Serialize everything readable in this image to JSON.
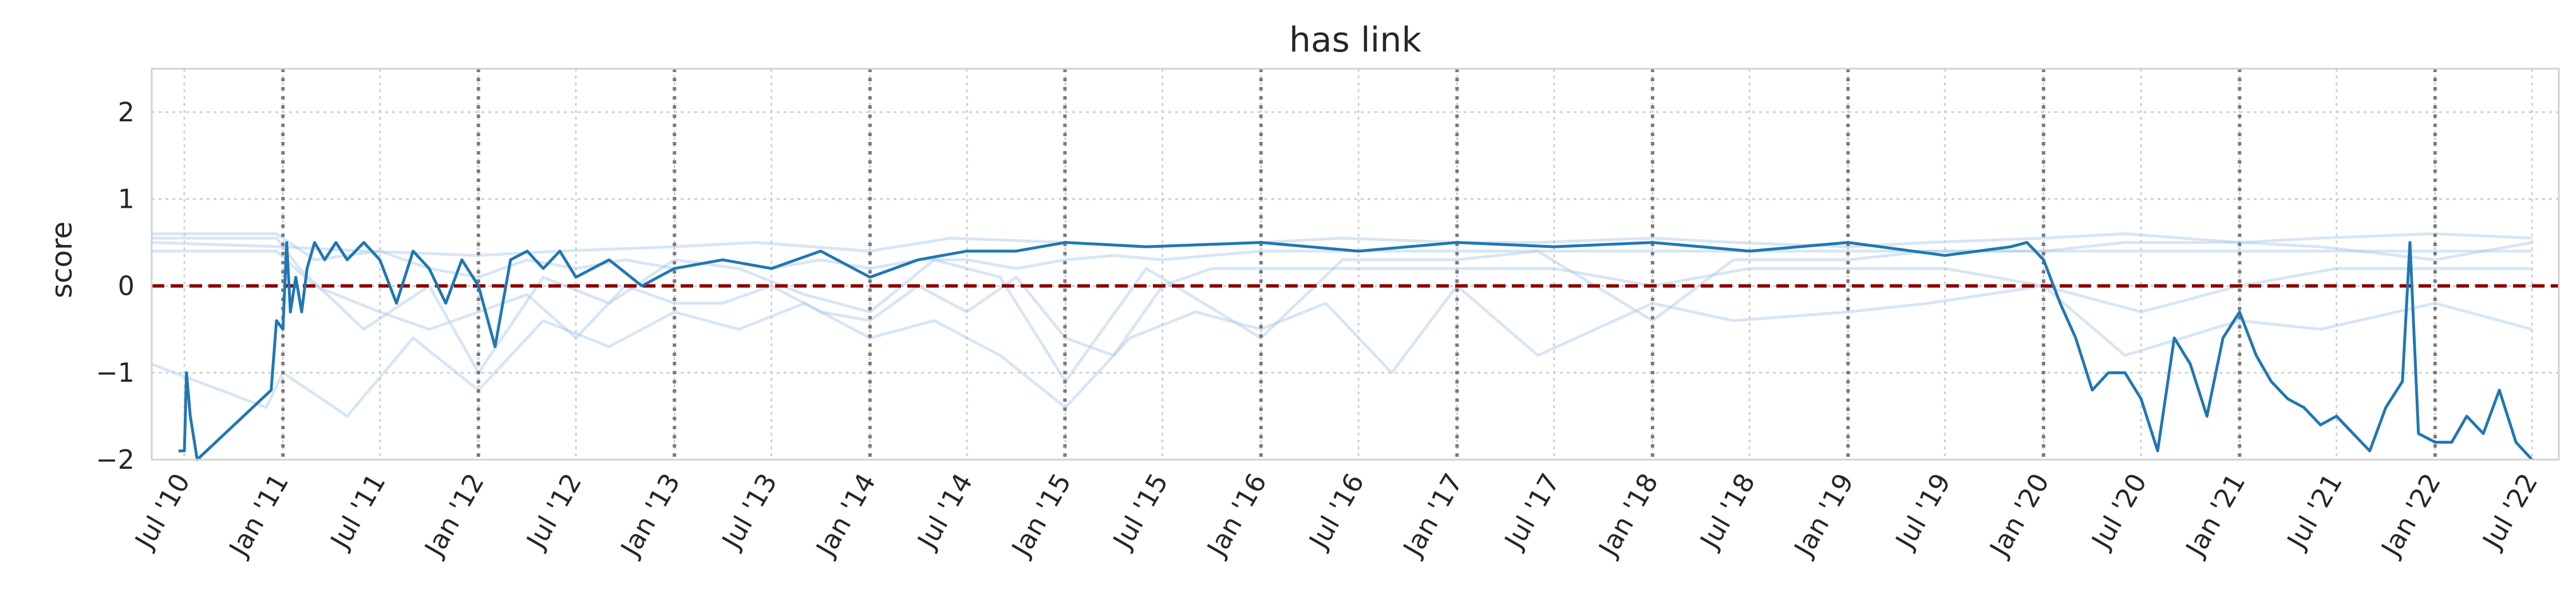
{
  "chart_data": {
    "type": "line",
    "title": "has link",
    "xlabel": "",
    "ylabel": "score",
    "ylim": [
      -2,
      2.5
    ],
    "xlim": [
      "2010-05-01",
      "2022-08-20"
    ],
    "grid": true,
    "ytick_labels": [
      "2",
      "1",
      "0",
      "−1",
      "−2"
    ],
    "yticks": [
      2,
      1,
      0,
      -1,
      -2
    ],
    "xtick_labels": [
      "Jul '10",
      "Jan '11",
      "Jul '11",
      "Jan '12",
      "Jul '12",
      "Jan '13",
      "Jul '13",
      "Jan '14",
      "Jul '14",
      "Jan '15",
      "Jul '15",
      "Jan '16",
      "Jul '16",
      "Jan '17",
      "Jul '17",
      "Jan '18",
      "Jul '18",
      "Jan '19",
      "Jul '19",
      "Jan '20",
      "Jul '20",
      "Jan '21",
      "Jul '21",
      "Jan '22",
      "Jul '22"
    ],
    "xticks": [
      "2010-07-01",
      "2011-01-01",
      "2011-07-01",
      "2012-01-01",
      "2012-07-01",
      "2013-01-01",
      "2013-07-01",
      "2014-01-01",
      "2014-07-01",
      "2015-01-01",
      "2015-07-01",
      "2016-01-01",
      "2016-07-01",
      "2017-01-01",
      "2017-07-01",
      "2018-01-01",
      "2018-07-01",
      "2019-01-01",
      "2019-07-01",
      "2020-01-01",
      "2020-07-01",
      "2021-01-01",
      "2021-07-01",
      "2022-01-01",
      "2022-07-01"
    ],
    "vertical_lines": [
      "2011-01-01",
      "2012-01-01",
      "2013-01-01",
      "2014-01-01",
      "2014-12-31",
      "2016-01-01",
      "2017-01-01",
      "2018-01-01",
      "2019-01-01",
      "2020-01-01",
      "2021-01-01",
      "2022-01-01"
    ],
    "reference_line": {
      "y": 0,
      "color": "#8b0000",
      "style": "dashed"
    },
    "colors": {
      "main": "#1f77b4",
      "background": "#a6c8e6",
      "vline": "#7a7a7a"
    },
    "series": [
      {
        "role": "highlighted",
        "x": [
          "2010-06-20",
          "2010-07-01",
          "2010-07-05",
          "2010-07-12",
          "2010-07-25",
          "2010-12-10",
          "2010-12-20",
          "2011-01-01",
          "2011-01-08",
          "2011-01-15",
          "2011-01-25",
          "2011-02-05",
          "2011-02-15",
          "2011-03-01",
          "2011-03-20",
          "2011-04-10",
          "2011-05-01",
          "2011-06-01",
          "2011-07-01",
          "2011-08-01",
          "2011-09-01",
          "2011-10-01",
          "2011-11-01",
          "2011-12-01",
          "2012-01-01",
          "2012-02-01",
          "2012-03-01",
          "2012-04-01",
          "2012-05-01",
          "2012-06-01",
          "2012-07-01",
          "2012-09-01",
          "2012-11-01",
          "2013-01-01",
          "2013-04-01",
          "2013-07-01",
          "2013-10-01",
          "2014-01-01",
          "2014-04-01",
          "2014-07-01",
          "2014-10-01",
          "2015-01-01",
          "2015-06-01",
          "2016-01-01",
          "2016-07-01",
          "2017-01-01",
          "2017-07-01",
          "2018-01-01",
          "2018-07-01",
          "2019-01-01",
          "2019-07-01",
          "2019-11-01",
          "2019-12-01",
          "2020-01-01",
          "2020-02-01",
          "2020-03-01",
          "2020-04-01",
          "2020-05-01",
          "2020-06-01",
          "2020-07-01",
          "2020-08-01",
          "2020-09-01",
          "2020-10-01",
          "2020-11-01",
          "2020-12-01",
          "2021-01-01",
          "2021-02-01",
          "2021-03-01",
          "2021-04-01",
          "2021-05-01",
          "2021-06-01",
          "2021-07-01",
          "2021-08-01",
          "2021-09-01",
          "2021-10-01",
          "2021-11-01",
          "2021-11-15",
          "2021-12-01",
          "2022-01-01",
          "2022-02-01",
          "2022-03-01",
          "2022-04-01",
          "2022-05-01",
          "2022-06-01",
          "2022-07-01"
        ],
        "y": [
          -1.9,
          -1.9,
          -1.0,
          -1.5,
          -2.0,
          -1.2,
          -0.4,
          -0.5,
          0.5,
          -0.3,
          0.1,
          -0.3,
          0.2,
          0.5,
          0.3,
          0.5,
          0.3,
          0.5,
          0.3,
          -0.2,
          0.4,
          0.2,
          -0.2,
          0.3,
          0.0,
          -0.7,
          0.3,
          0.4,
          0.2,
          0.4,
          0.1,
          0.3,
          0.0,
          0.2,
          0.3,
          0.2,
          0.4,
          0.1,
          0.3,
          0.4,
          0.4,
          0.5,
          0.45,
          0.5,
          0.4,
          0.5,
          0.45,
          0.5,
          0.4,
          0.5,
          0.35,
          0.45,
          0.5,
          0.3,
          -0.2,
          -0.6,
          -1.2,
          -1.0,
          -1.0,
          -1.3,
          -1.9,
          -0.6,
          -0.9,
          -1.5,
          -0.6,
          -0.3,
          -0.8,
          -1.1,
          -1.3,
          -1.4,
          -1.6,
          -1.5,
          -1.7,
          -1.9,
          -1.4,
          -1.1,
          0.5,
          -1.7,
          -1.8,
          -1.8,
          -1.5,
          -1.7,
          -1.2,
          -1.8,
          -2.0
        ]
      },
      {
        "role": "background",
        "x": [
          "2010-05-01",
          "2010-12-20",
          "2011-03-01",
          "2011-07-01",
          "2011-10-01",
          "2012-01-01",
          "2012-04-01",
          "2012-07-01",
          "2012-10-01",
          "2013-01-01",
          "2013-04-01",
          "2013-07-01",
          "2013-10-01",
          "2014-01-01",
          "2014-04-01",
          "2014-07-01",
          "2014-10-01",
          "2015-01-01",
          "2015-04-01",
          "2015-07-01",
          "2015-10-01",
          "2016-01-01",
          "2016-07-01",
          "2017-01-01",
          "2017-07-01",
          "2018-01-01",
          "2018-07-01",
          "2019-01-01",
          "2019-07-01",
          "2020-01-01",
          "2020-07-01",
          "2021-01-01",
          "2021-07-01",
          "2022-01-01",
          "2022-07-01"
        ],
        "y": [
          0.6,
          0.6,
          0.3,
          0.4,
          0.2,
          0.1,
          0.3,
          0.2,
          0.3,
          0.2,
          0.3,
          0.2,
          0.3,
          0.2,
          0.3,
          0.3,
          0.2,
          0.3,
          0.35,
          0.3,
          0.35,
          0.4,
          0.4,
          0.4,
          0.4,
          0.4,
          0.4,
          0.4,
          0.4,
          0.4,
          0.4,
          0.4,
          0.4,
          0.4,
          0.4
        ]
      },
      {
        "role": "background",
        "x": [
          "2010-05-01",
          "2010-12-20",
          "2011-03-01",
          "2011-07-01",
          "2011-10-01",
          "2012-01-01",
          "2012-04-01",
          "2012-07-01",
          "2012-10-01",
          "2013-01-01",
          "2013-04-01",
          "2013-07-01",
          "2013-10-01",
          "2014-01-01",
          "2014-04-01",
          "2014-07-01",
          "2014-10-01",
          "2015-01-01",
          "2015-04-01",
          "2015-07-01",
          "2015-10-01",
          "2016-01-01",
          "2016-07-01",
          "2017-01-01",
          "2017-07-01",
          "2018-01-01",
          "2018-07-01",
          "2019-01-01",
          "2019-07-01",
          "2020-01-01",
          "2020-07-01",
          "2021-01-01",
          "2021-07-01",
          "2022-01-01",
          "2022-07-01"
        ],
        "y": [
          0.4,
          0.4,
          0.0,
          -0.3,
          -0.5,
          -0.3,
          -0.1,
          -0.6,
          0.0,
          -0.2,
          -0.2,
          0.0,
          -0.3,
          -0.4,
          0.0,
          -0.3,
          0.1,
          -0.6,
          -0.8,
          0.0,
          0.2,
          0.2,
          0.2,
          0.2,
          0.2,
          0.0,
          0.2,
          0.2,
          0.2,
          0.0,
          -0.3,
          0.0,
          0.2,
          0.2,
          0.2
        ]
      },
      {
        "role": "background",
        "x": [
          "2010-05-01",
          "2010-12-01",
          "2011-01-01",
          "2011-05-01",
          "2011-09-01",
          "2012-01-01",
          "2012-05-01",
          "2012-09-01",
          "2013-01-01",
          "2013-05-01",
          "2013-09-01",
          "2014-01-01",
          "2014-05-01",
          "2014-09-01",
          "2015-01-01",
          "2015-05-01",
          "2015-09-01",
          "2016-01-01",
          "2016-05-01",
          "2016-09-01",
          "2017-01-01",
          "2017-06-01",
          "2018-01-01",
          "2018-06-01",
          "2019-01-01",
          "2019-06-01",
          "2020-01-01",
          "2020-06-01",
          "2021-01-01",
          "2021-06-01",
          "2022-01-01",
          "2022-07-01"
        ],
        "y": [
          -0.9,
          -1.4,
          -1.0,
          -1.5,
          -0.6,
          -1.2,
          -0.4,
          -0.7,
          -0.3,
          -0.5,
          -0.2,
          -0.6,
          -0.4,
          -0.8,
          -1.4,
          -0.6,
          -0.3,
          -0.5,
          -0.2,
          -1.0,
          0.0,
          -0.8,
          -0.2,
          -0.4,
          -0.3,
          -0.2,
          0.0,
          -0.8,
          -0.4,
          -0.5,
          -0.2,
          -0.5
        ]
      },
      {
        "role": "background",
        "x": [
          "2010-05-01",
          "2010-12-20",
          "2011-02-01",
          "2011-06-01",
          "2011-10-01",
          "2012-01-01",
          "2012-05-01",
          "2012-09-01",
          "2013-01-01",
          "2013-05-01",
          "2013-09-01",
          "2014-01-01",
          "2014-05-01",
          "2014-09-01",
          "2015-01-01",
          "2015-06-01",
          "2016-01-01",
          "2016-06-01",
          "2017-01-01",
          "2017-06-01",
          "2018-01-01",
          "2018-06-01",
          "2019-01-01",
          "2019-06-01",
          "2020-01-01",
          "2020-06-01",
          "2021-01-01",
          "2021-06-01",
          "2022-01-01",
          "2022-07-01"
        ],
        "y": [
          0.55,
          0.55,
          0.2,
          -0.5,
          0.0,
          -1.0,
          0.1,
          -0.2,
          0.3,
          0.2,
          -0.1,
          -0.3,
          0.3,
          0.1,
          -1.1,
          0.2,
          -0.6,
          0.3,
          0.3,
          0.4,
          -0.4,
          0.3,
          0.3,
          0.4,
          0.4,
          0.5,
          0.5,
          0.45,
          0.3,
          0.5
        ]
      },
      {
        "role": "background",
        "x": [
          "2010-05-01",
          "2011-01-01",
          "2011-06-01",
          "2012-01-01",
          "2012-06-01",
          "2013-01-01",
          "2013-06-01",
          "2014-01-01",
          "2014-06-01",
          "2015-01-01",
          "2015-06-01",
          "2016-01-01",
          "2016-06-01",
          "2017-01-01",
          "2017-06-01",
          "2018-01-01",
          "2018-06-01",
          "2019-01-01",
          "2019-06-01",
          "2020-01-01",
          "2020-06-01",
          "2021-01-01",
          "2021-06-01",
          "2022-01-01",
          "2022-07-01"
        ],
        "y": [
          0.5,
          0.45,
          0.4,
          0.35,
          0.4,
          0.45,
          0.5,
          0.4,
          0.55,
          0.5,
          0.45,
          0.5,
          0.55,
          0.5,
          0.5,
          0.55,
          0.5,
          0.45,
          0.5,
          0.55,
          0.6,
          0.5,
          0.55,
          0.6,
          0.55
        ]
      }
    ]
  }
}
